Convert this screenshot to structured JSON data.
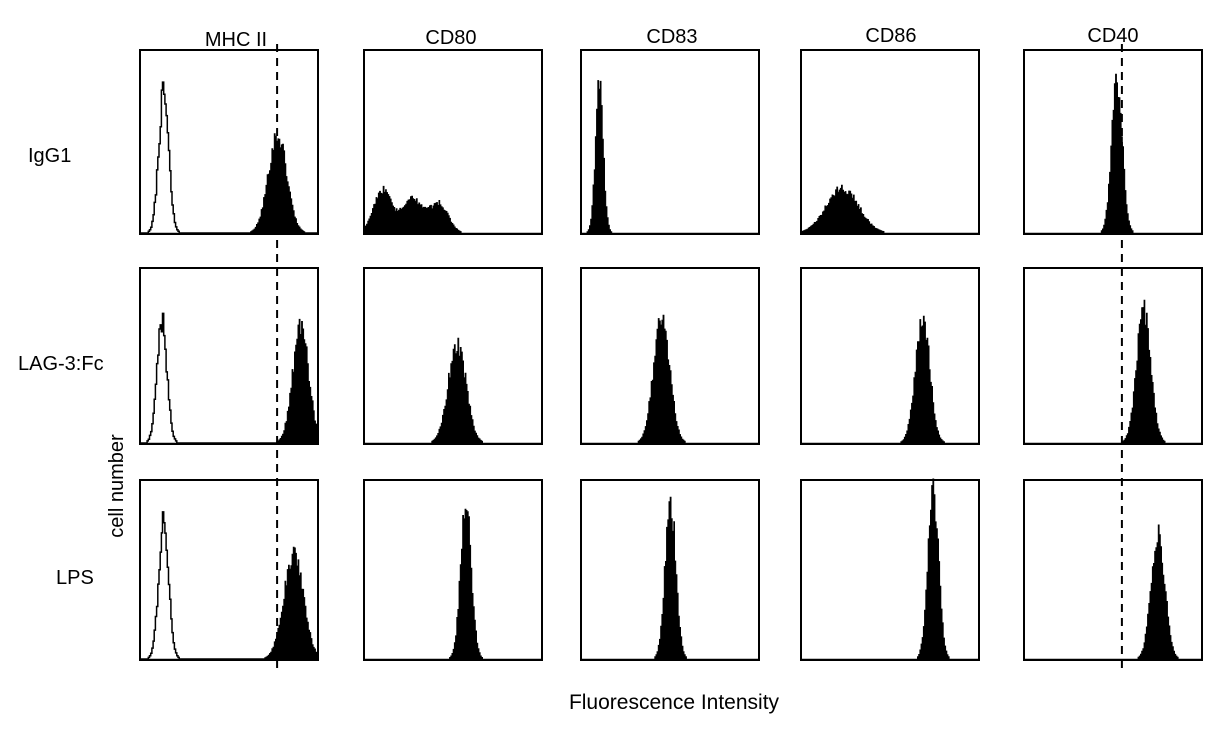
{
  "chart_data": {
    "type": "histogram-grid",
    "columns": [
      "MHC II",
      "CD80",
      "CD83",
      "CD86",
      "CD40"
    ],
    "rows": [
      "IgG1",
      "LAG-3:Fc",
      "LPS"
    ],
    "xlabel": "Fluorescence Intensity",
    "ylabel": "cell number",
    "legend": "none",
    "grid": false,
    "reference_lines": [
      {
        "column": "MHC II",
        "x": 0.77,
        "style": "dashed"
      },
      {
        "column": "CD40",
        "x": 0.55,
        "style": "dashed"
      }
    ],
    "isotype_control": {
      "column": "MHC II",
      "style": "open",
      "rows": {
        "IgG1": {
          "center": 0.13,
          "width": 0.028,
          "height": 0.78
        },
        "LAG-3:Fc": {
          "center": 0.12,
          "width": 0.028,
          "height": 0.72
        },
        "LPS": {
          "center": 0.13,
          "width": 0.028,
          "height": 0.78
        }
      }
    },
    "panels": [
      {
        "row": "IgG1",
        "column": "MHC II",
        "peaks": [
          {
            "center": 0.77,
            "width": 0.052,
            "height": 0.55
          }
        ]
      },
      {
        "row": "IgG1",
        "column": "CD80",
        "peaks": [
          {
            "center": 0.1,
            "width": 0.05,
            "height": 0.24
          },
          {
            "center": 0.27,
            "width": 0.06,
            "height": 0.19
          },
          {
            "center": 0.42,
            "width": 0.05,
            "height": 0.16
          }
        ]
      },
      {
        "row": "IgG1",
        "column": "CD83",
        "peaks": [
          {
            "center": 0.1,
            "width": 0.022,
            "height": 0.82
          }
        ]
      },
      {
        "row": "IgG1",
        "column": "CD86",
        "peaks": [
          {
            "center": 0.23,
            "width": 0.09,
            "height": 0.25
          }
        ]
      },
      {
        "row": "IgG1",
        "column": "CD40",
        "peaks": [
          {
            "center": 0.52,
            "width": 0.03,
            "height": 0.86
          }
        ]
      },
      {
        "row": "LAG-3:Fc",
        "column": "MHC II",
        "peaks": [
          {
            "center": 0.9,
            "width": 0.045,
            "height": 0.68
          }
        ]
      },
      {
        "row": "LAG-3:Fc",
        "column": "CD80",
        "peaks": [
          {
            "center": 0.52,
            "width": 0.05,
            "height": 0.58
          }
        ]
      },
      {
        "row": "LAG-3:Fc",
        "column": "CD83",
        "peaks": [
          {
            "center": 0.45,
            "width": 0.045,
            "height": 0.75
          }
        ]
      },
      {
        "row": "LAG-3:Fc",
        "column": "CD86",
        "peaks": [
          {
            "center": 0.68,
            "width": 0.04,
            "height": 0.74
          }
        ]
      },
      {
        "row": "LAG-3:Fc",
        "column": "CD40",
        "peaks": [
          {
            "center": 0.67,
            "width": 0.04,
            "height": 0.78
          }
        ]
      },
      {
        "row": "LPS",
        "column": "MHC II",
        "peaks": [
          {
            "center": 0.86,
            "width": 0.055,
            "height": 0.6
          }
        ]
      },
      {
        "row": "LPS",
        "column": "CD80",
        "peaks": [
          {
            "center": 0.57,
            "width": 0.03,
            "height": 0.88
          }
        ]
      },
      {
        "row": "LPS",
        "column": "CD83",
        "peaks": [
          {
            "center": 0.5,
            "width": 0.03,
            "height": 0.9
          }
        ]
      },
      {
        "row": "LPS",
        "column": "CD86",
        "peaks": [
          {
            "center": 0.74,
            "width": 0.03,
            "height": 0.95
          }
        ]
      },
      {
        "row": "LPS",
        "column": "CD40",
        "peaks": [
          {
            "center": 0.75,
            "width": 0.038,
            "height": 0.72
          }
        ]
      }
    ]
  }
}
